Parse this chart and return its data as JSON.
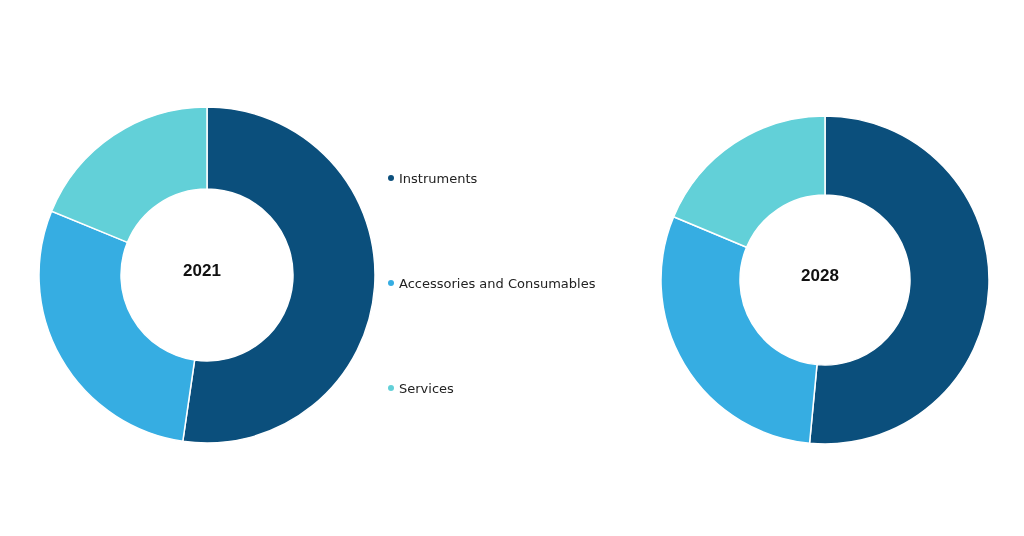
{
  "chart_data": [
    {
      "type": "donut",
      "title": "2021",
      "categories": [
        "Instruments",
        "Accessories and Consumables",
        "Services"
      ],
      "values": [
        52.3,
        28.9,
        18.8
      ],
      "colors": [
        "#0b4f7c",
        "#36ade2",
        "#62d0d8"
      ],
      "legend": "right"
    },
    {
      "type": "donut",
      "title": "2028",
      "categories": [
        null,
        null,
        null
      ],
      "values": [
        51.5,
        29.8,
        18.7
      ],
      "colors": [
        "#0b4f7c",
        "#36ade2",
        "#62d0d8"
      ]
    }
  ]
}
